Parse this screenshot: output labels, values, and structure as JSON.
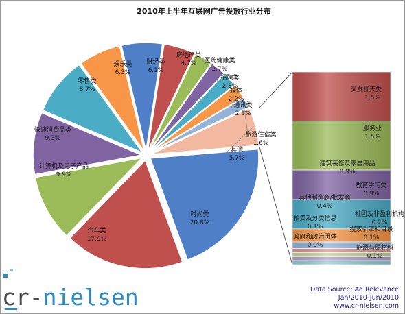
{
  "chart_data": {
    "type": "pie",
    "title": "2010年上半年互联网广告投放行业分布",
    "slices": [
      {
        "name": "财经类",
        "value": 6.1,
        "label": "6.1%",
        "color": "#4f80c7"
      },
      {
        "name": "房地产类",
        "value": 4.7,
        "label": "4.7%",
        "color": "#c0504d"
      },
      {
        "name": "医药健康类",
        "value": 2.7,
        "label": "2.7%",
        "color": "#9bbb59"
      },
      {
        "name": "招聘类",
        "value": 2.3,
        "label": "2.3%",
        "color": "#8064a2"
      },
      {
        "name": "媒体",
        "value": 2.2,
        "label": "2.2%",
        "color": "#4bacc6"
      },
      {
        "name": "通讯类",
        "value": 2.1,
        "label": "2.1%",
        "color": "#f79646"
      },
      {
        "name": "旅游住宿类",
        "value": 1.6,
        "label": "1.6%",
        "color": "#95b3d7"
      },
      {
        "name": "其他",
        "value": 5.7,
        "label": "5.7%",
        "color": "#f2b8a0"
      },
      {
        "name": "时尚类",
        "value": 20.8,
        "label": "20.8%",
        "color": "#4f80c7"
      },
      {
        "name": "汽车类",
        "value": 17.9,
        "label": "17.9%",
        "color": "#c0504d"
      },
      {
        "name": "计算机及电子产品",
        "value": 9.9,
        "label": "9.9%",
        "color": "#9bbb59"
      },
      {
        "name": "快速消费品类",
        "value": 9.3,
        "label": "9.3%",
        "color": "#8064a2"
      },
      {
        "name": "零售类",
        "value": 8.7,
        "label": "8.7%",
        "color": "#4bacc6"
      },
      {
        "name": "娱乐类",
        "value": 6.3,
        "label": "6.3%",
        "color": "#f79646"
      }
    ],
    "breakdown_of": "其他",
    "breakdown": [
      {
        "name": "交友聊天类",
        "value": 1.5,
        "label": "1.5%",
        "color": "#c0504d"
      },
      {
        "name": "服务业",
        "value": 1.5,
        "label": "1.5%",
        "color": "#9bbb59"
      },
      {
        "name": "建筑装修及家居用品",
        "value": 0.9,
        "label": "0.9%",
        "color": "#8064a2"
      },
      {
        "name": "教育学习类",
        "value": 0.9,
        "label": "0.9%",
        "color": "#4bacc6"
      },
      {
        "name": "其他制造商/批发商",
        "value": 0.4,
        "label": "0.4%",
        "color": "#f79646"
      },
      {
        "name": "社团及非盈利机构",
        "value": 0.2,
        "label": "0.2%",
        "color": "#95b3d7"
      },
      {
        "name": "拍卖及分类信息",
        "value": 0.1,
        "label": "0.1%",
        "color": "#d99694"
      },
      {
        "name": "搜索引擎和目录",
        "value": 0.1,
        "label": "0.1%",
        "color": "#c3d69b"
      },
      {
        "name": "政府和政治团体",
        "value": 0.0,
        "label": "0.0%",
        "color": "#b3a2c7"
      },
      {
        "name": "能源与原材料",
        "value": 0.1,
        "label": "0.1%",
        "color": "#93cddd"
      }
    ]
  },
  "source": {
    "line1": "Data Source: Ad Relevance",
    "line2": "Jan/2010-Jun/2010",
    "line3": "www.cr-nielsen.com"
  },
  "logo": {
    "part1": "cr-",
    "part2": "nielsen"
  }
}
